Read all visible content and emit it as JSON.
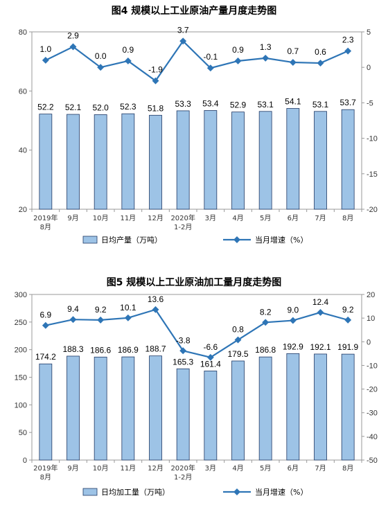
{
  "chart_data": [
    {
      "type": "bar",
      "title": "图4  规模以上工业原油产量月度走势图",
      "categories": [
        [
          "2019年",
          "8月"
        ],
        [
          "9月"
        ],
        [
          "10月"
        ],
        [
          "11月"
        ],
        [
          "12月"
        ],
        [
          "2020年",
          "1-2月"
        ],
        [
          "3月"
        ],
        [
          "4月"
        ],
        [
          "5月"
        ],
        [
          "6月"
        ],
        [
          "7月"
        ],
        [
          "8月"
        ]
      ],
      "series": [
        {
          "name": "日均产量（万吨）",
          "axis": "left",
          "kind": "bar",
          "values": [
            52.2,
            52.1,
            52.0,
            52.3,
            51.8,
            53.3,
            53.4,
            52.9,
            53.1,
            54.1,
            53.1,
            53.7
          ]
        },
        {
          "name": "当月增速（%）",
          "axis": "right",
          "kind": "line",
          "values": [
            1.0,
            2.9,
            0.0,
            0.9,
            -1.9,
            3.7,
            -0.1,
            0.9,
            1.3,
            0.7,
            0.6,
            2.3
          ]
        }
      ],
      "left_axis": {
        "ylim": [
          20,
          80
        ],
        "ticks": [
          20,
          40,
          60,
          80
        ]
      },
      "right_axis": {
        "ylim": [
          -20,
          5
        ],
        "ticks": [
          -20,
          -15,
          -10,
          -5,
          0,
          5
        ]
      },
      "colors": {
        "bar_fill": "#9dc3e6",
        "bar_stroke": "#1f3864",
        "line": "#2e75b6"
      },
      "legend_position": "bottom"
    },
    {
      "type": "bar",
      "title": "图5  规模以上工业原油加工量月度走势图",
      "categories": [
        [
          "2019年",
          "8月"
        ],
        [
          "9月"
        ],
        [
          "10月"
        ],
        [
          "11月"
        ],
        [
          "12月"
        ],
        [
          "2020年",
          "1-2月"
        ],
        [
          "3月"
        ],
        [
          "4月"
        ],
        [
          "5月"
        ],
        [
          "6月"
        ],
        [
          "7月"
        ],
        [
          "8月"
        ]
      ],
      "series": [
        {
          "name": "日均加工量（万吨）",
          "axis": "left",
          "kind": "bar",
          "values": [
            174.2,
            188.3,
            186.6,
            186.9,
            188.7,
            165.3,
            161.4,
            179.5,
            186.8,
            192.9,
            192.1,
            191.9
          ]
        },
        {
          "name": "当月增速（%）",
          "axis": "right",
          "kind": "line",
          "values": [
            6.9,
            9.4,
            9.2,
            10.1,
            13.6,
            -3.8,
            -6.6,
            0.8,
            8.2,
            9.0,
            12.4,
            9.2
          ]
        }
      ],
      "left_axis": {
        "ylim": [
          0,
          300
        ],
        "ticks": [
          0,
          50,
          100,
          150,
          200,
          250,
          300
        ]
      },
      "right_axis": {
        "ylim": [
          -50,
          20
        ],
        "ticks": [
          -50,
          -40,
          -30,
          -20,
          -10,
          0,
          10,
          20
        ]
      },
      "colors": {
        "bar_fill": "#9dc3e6",
        "bar_stroke": "#1f3864",
        "line": "#2e75b6"
      },
      "legend_position": "bottom"
    }
  ]
}
